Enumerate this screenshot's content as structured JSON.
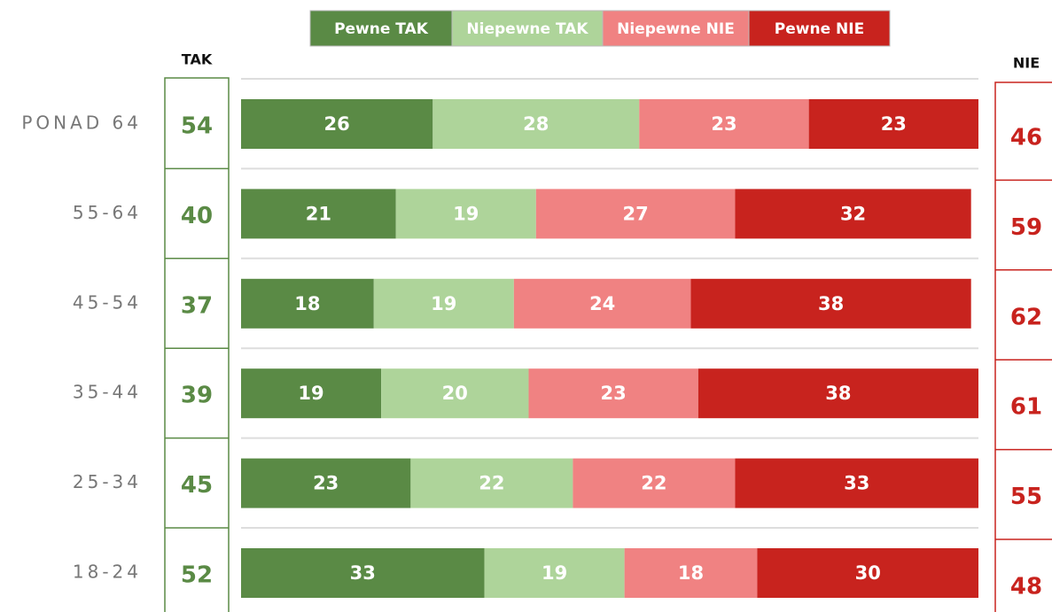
{
  "chart_data": {
    "type": "stacked_bar",
    "categories": [
      "PONAD 64",
      "55-64",
      "45-54",
      "35-44",
      "25-34",
      "18-24"
    ],
    "series": [
      {
        "name": "Pewne TAK",
        "color": "#5a8a45",
        "values": [
          26,
          21,
          18,
          19,
          23,
          33
        ]
      },
      {
        "name": "Niepewne TAK",
        "color": "#aed49a",
        "values": [
          28,
          19,
          19,
          20,
          22,
          19
        ]
      },
      {
        "name": "Niepewne NIE",
        "color": "#f08282",
        "values": [
          23,
          27,
          24,
          23,
          22,
          18
        ]
      },
      {
        "name": "Pewne NIE",
        "color": "#c8231e",
        "values": [
          23,
          32,
          38,
          38,
          33,
          30
        ]
      }
    ],
    "totals": [
      {
        "name": "TAK",
        "color": "#5a8a45",
        "values": [
          54,
          40,
          37,
          39,
          45,
          52
        ]
      },
      {
        "name": "NIE",
        "color": "#c8231e",
        "values": [
          46,
          59,
          62,
          61,
          55,
          48
        ]
      }
    ],
    "xlim": [
      0,
      100
    ]
  }
}
